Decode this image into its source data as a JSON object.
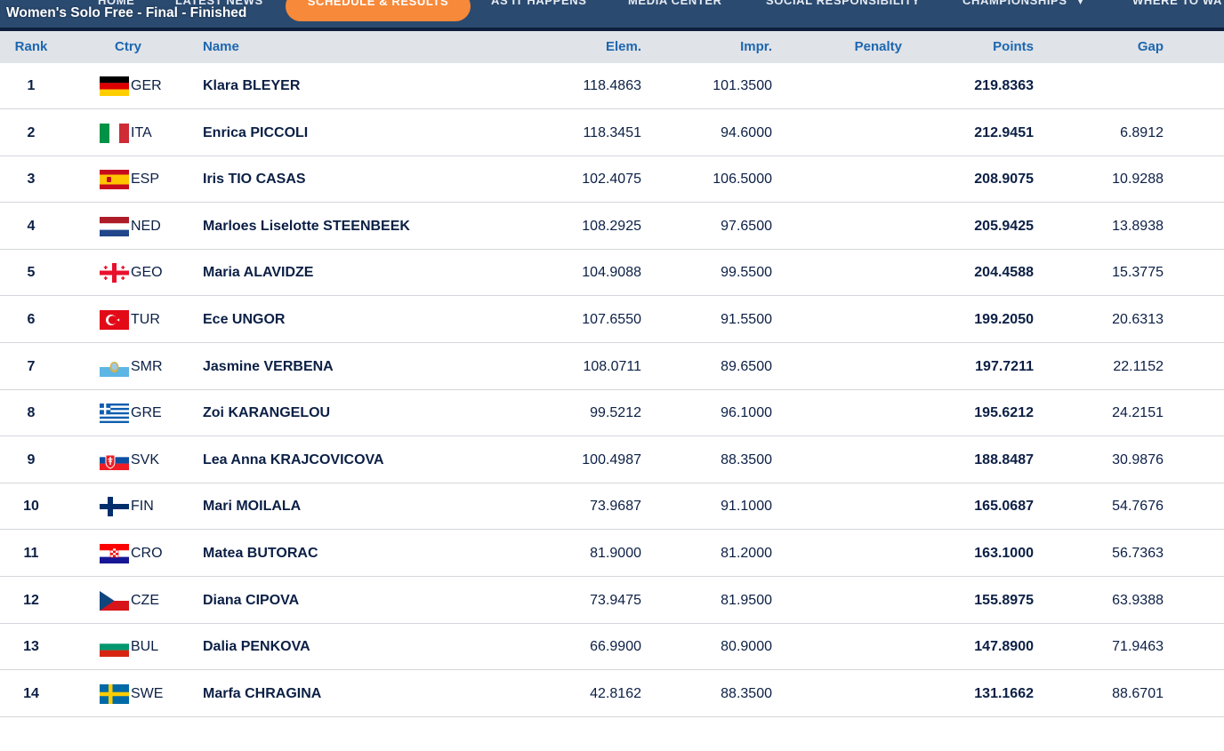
{
  "nav": {
    "items": [
      "HOME",
      "LATEST NEWS",
      "SCHEDULE & RESULTS",
      "AS IT HAPPENS",
      "MEDIA CENTER",
      "SOCIAL RESPONSIBILITY",
      "CHAMPIONSHIPS",
      "WHERE TO WA"
    ],
    "active_item": "SCHEDULE & RESULTS",
    "accent_color": "#f7893a"
  },
  "event": {
    "title": "Women's Solo Free - Final",
    "separator": "-",
    "status": "Finished"
  },
  "table": {
    "headers": {
      "rank": "Rank",
      "ctry": "Ctry",
      "name": "Name",
      "elem": "Elem.",
      "impr": "Impr.",
      "penalty": "Penalty",
      "points": "Points",
      "gap": "Gap"
    },
    "rows": [
      {
        "rank": "1",
        "flag": "germany-flag",
        "ctry": "GER",
        "name": "Klara BLEYER",
        "elem": "118.4863",
        "impr": "101.3500",
        "penalty": "",
        "points": "219.8363",
        "gap": ""
      },
      {
        "rank": "2",
        "flag": "italy-flag",
        "ctry": "ITA",
        "name": "Enrica PICCOLI",
        "elem": "118.3451",
        "impr": "94.6000",
        "penalty": "",
        "points": "212.9451",
        "gap": "6.8912"
      },
      {
        "rank": "3",
        "flag": "spain-flag",
        "ctry": "ESP",
        "name": "Iris TIO CASAS",
        "elem": "102.4075",
        "impr": "106.5000",
        "penalty": "",
        "points": "208.9075",
        "gap": "10.9288"
      },
      {
        "rank": "4",
        "flag": "netherlands-flag",
        "ctry": "NED",
        "name": "Marloes Liselotte STEENBEEK",
        "elem": "108.2925",
        "impr": "97.6500",
        "penalty": "",
        "points": "205.9425",
        "gap": "13.8938"
      },
      {
        "rank": "5",
        "flag": "georgia-flag",
        "ctry": "GEO",
        "name": "Maria ALAVIDZE",
        "elem": "104.9088",
        "impr": "99.5500",
        "penalty": "",
        "points": "204.4588",
        "gap": "15.3775"
      },
      {
        "rank": "6",
        "flag": "turkey-flag",
        "ctry": "TUR",
        "name": "Ece UNGOR",
        "elem": "107.6550",
        "impr": "91.5500",
        "penalty": "",
        "points": "199.2050",
        "gap": "20.6313"
      },
      {
        "rank": "7",
        "flag": "san-marino-flag",
        "ctry": "SMR",
        "name": "Jasmine VERBENA",
        "elem": "108.0711",
        "impr": "89.6500",
        "penalty": "",
        "points": "197.7211",
        "gap": "22.1152"
      },
      {
        "rank": "8",
        "flag": "greece-flag",
        "ctry": "GRE",
        "name": "Zoi KARANGELOU",
        "elem": "99.5212",
        "impr": "96.1000",
        "penalty": "",
        "points": "195.6212",
        "gap": "24.2151"
      },
      {
        "rank": "9",
        "flag": "slovakia-flag",
        "ctry": "SVK",
        "name": "Lea Anna KRAJCOVICOVA",
        "elem": "100.4987",
        "impr": "88.3500",
        "penalty": "",
        "points": "188.8487",
        "gap": "30.9876"
      },
      {
        "rank": "10",
        "flag": "finland-flag",
        "ctry": "FIN",
        "name": "Mari MOILALA",
        "elem": "73.9687",
        "impr": "91.1000",
        "penalty": "",
        "points": "165.0687",
        "gap": "54.7676"
      },
      {
        "rank": "11",
        "flag": "croatia-flag",
        "ctry": "CRO",
        "name": "Matea BUTORAC",
        "elem": "81.9000",
        "impr": "81.2000",
        "penalty": "",
        "points": "163.1000",
        "gap": "56.7363"
      },
      {
        "rank": "12",
        "flag": "czechia-flag",
        "ctry": "CZE",
        "name": "Diana CIPOVA",
        "elem": "73.9475",
        "impr": "81.9500",
        "penalty": "",
        "points": "155.8975",
        "gap": "63.9388"
      },
      {
        "rank": "13",
        "flag": "bulgaria-flag",
        "ctry": "BUL",
        "name": "Dalia PENKOVA",
        "elem": "66.9900",
        "impr": "80.9000",
        "penalty": "",
        "points": "147.8900",
        "gap": "71.9463"
      },
      {
        "rank": "14",
        "flag": "sweden-flag",
        "ctry": "SWE",
        "name": "Marfa CHRAGINA",
        "elem": "42.8162",
        "impr": "88.3500",
        "penalty": "",
        "points": "131.1662",
        "gap": "88.6701"
      }
    ]
  },
  "colors": {
    "header_text": "#1d67b0",
    "header_bg": "#e0e3e8",
    "body_text": "#0b1f45",
    "nav_bg": "#2b4a6f"
  }
}
